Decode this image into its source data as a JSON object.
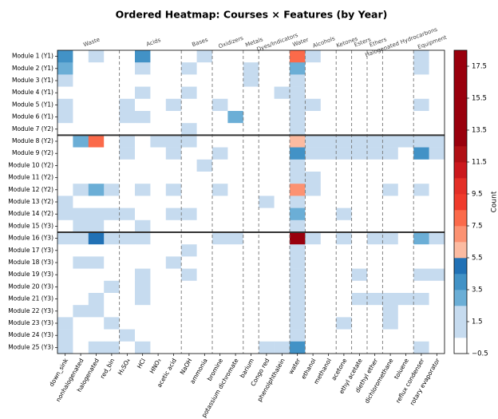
{
  "chart_data": {
    "type": "heatmap",
    "title": "Ordered Heatmap: Courses × Features (by Year)",
    "colorbar_label": "Count",
    "rows": [
      "Module 1 (Y1)",
      "Module 2 (Y1)",
      "Module 3 (Y1)",
      "Module 4 (Y1)",
      "Module 5 (Y1)",
      "Module 6 (Y1)",
      "Module 7 (Y2)",
      "Module 8 (Y2)",
      "Module 9 (Y2)",
      "Module 10 (Y2)",
      "Module 11 (Y2)",
      "Module 12 (Y2)",
      "Module 13 (Y2)",
      "Module 14 (Y2)",
      "Module 15 (Y3)",
      "Module 16 (Y3)",
      "Module 17 (Y3)",
      "Module 18 (Y3)",
      "Module 19 (Y3)",
      "Module 20 (Y3)",
      "Module 21 (Y3)",
      "Module 22 (Y3)",
      "Module 23 (Y3)",
      "Module 24 (Y3)",
      "Module 25 (Y3)"
    ],
    "columns": [
      "down_sink",
      "nonhalogenated",
      "halogenated",
      "red_bin",
      "H₂SO₄",
      "HCl",
      "HNO₃",
      "acetic acid",
      "NaOH",
      "ammonia",
      "bromine",
      "potassium dichromate",
      "barium",
      "Congo red",
      "phenolphthalein",
      "water",
      "ethanol",
      "methanol",
      "acetone",
      "ethyl acetate",
      "diethyl ether",
      "dichloromethane",
      "toluene",
      "reflux condenser",
      "rotary evaporator"
    ],
    "groups": [
      {
        "label": "Waste",
        "start": 0,
        "end": 3
      },
      {
        "label": "Acids",
        "start": 4,
        "end": 7
      },
      {
        "label": "Bases",
        "start": 8,
        "end": 9
      },
      {
        "label": "Oxidizers",
        "start": 10,
        "end": 11
      },
      {
        "label": "Metals",
        "start": 12,
        "end": 12
      },
      {
        "label": "Dyes/Indicators",
        "start": 13,
        "end": 14
      },
      {
        "label": "Water",
        "start": 15,
        "end": 15
      },
      {
        "label": "Alcohols",
        "start": 16,
        "end": 17
      },
      {
        "label": "Ketones",
        "start": 18,
        "end": 18
      },
      {
        "label": "Esters",
        "start": 19,
        "end": 19
      },
      {
        "label": "Ethers",
        "start": 20,
        "end": 20
      },
      {
        "label": "Halogenated Hydrocarbons",
        "start": 21,
        "end": 22
      },
      {
        "label": "Equipment",
        "start": 23,
        "end": 24
      }
    ],
    "row_breaks": [
      7,
      15
    ],
    "values": [
      [
        4,
        0,
        1,
        0,
        0,
        4,
        0,
        0,
        0,
        1,
        0,
        0,
        0,
        0,
        0,
        8,
        1,
        0,
        0,
        0,
        0,
        0,
        0,
        1,
        0
      ],
      [
        3,
        0,
        0,
        0,
        0,
        1,
        0,
        0,
        1,
        0,
        0,
        0,
        1,
        0,
        0,
        3,
        0,
        0,
        0,
        0,
        0,
        0,
        0,
        1,
        0
      ],
      [
        2,
        0,
        0,
        0,
        0,
        0,
        0,
        0,
        0,
        0,
        0,
        0,
        2,
        0,
        0,
        1,
        0,
        0,
        0,
        0,
        0,
        0,
        0,
        0,
        0
      ],
      [
        0,
        0,
        0,
        0,
        0,
        1,
        0,
        0,
        1,
        0,
        0,
        0,
        0,
        0,
        1,
        1,
        0,
        0,
        0,
        0,
        0,
        0,
        0,
        0,
        0
      ],
      [
        1,
        0,
        0,
        0,
        1,
        0,
        0,
        2,
        0,
        0,
        2,
        0,
        0,
        0,
        0,
        1,
        1,
        0,
        0,
        0,
        0,
        0,
        0,
        1,
        0
      ],
      [
        2,
        0,
        0,
        0,
        2,
        1,
        0,
        0,
        0,
        0,
        0,
        3,
        0,
        0,
        0,
        1,
        0,
        0,
        0,
        0,
        0,
        0,
        0,
        0,
        0
      ],
      [
        0,
        0,
        0,
        0,
        0,
        0,
        0,
        0,
        1,
        0,
        0,
        0,
        0,
        0,
        0,
        1,
        0,
        0,
        0,
        0,
        0,
        0,
        0,
        0,
        0
      ],
      [
        0,
        3,
        8,
        0,
        1,
        0,
        1,
        1,
        1,
        0,
        0,
        0,
        0,
        0,
        0,
        6,
        1,
        1,
        1,
        1,
        1,
        2,
        1,
        2,
        2
      ],
      [
        0,
        0,
        0,
        0,
        1,
        0,
        0,
        1,
        0,
        0,
        1,
        0,
        0,
        0,
        0,
        4,
        1,
        2,
        1,
        1,
        1,
        2,
        0,
        4,
        1
      ],
      [
        0,
        0,
        0,
        0,
        0,
        0,
        0,
        0,
        0,
        1,
        0,
        0,
        0,
        0,
        0,
        1,
        0,
        0,
        0,
        0,
        0,
        0,
        0,
        0,
        0
      ],
      [
        0,
        0,
        0,
        0,
        0,
        0,
        0,
        0,
        0,
        0,
        0,
        0,
        0,
        0,
        0,
        1,
        1,
        0,
        0,
        0,
        0,
        0,
        0,
        0,
        0
      ],
      [
        0,
        1,
        3,
        1,
        0,
        2,
        0,
        1,
        0,
        0,
        1,
        0,
        0,
        0,
        0,
        7,
        2,
        0,
        0,
        0,
        0,
        2,
        0,
        1,
        0
      ],
      [
        1,
        0,
        0,
        0,
        0,
        0,
        0,
        0,
        0,
        0,
        0,
        0,
        0,
        2,
        0,
        1,
        0,
        0,
        0,
        0,
        0,
        0,
        0,
        0,
        0
      ],
      [
        1,
        1,
        1,
        1,
        1,
        0,
        0,
        1,
        1,
        0,
        0,
        0,
        0,
        0,
        0,
        3,
        0,
        0,
        1,
        0,
        0,
        0,
        0,
        0,
        0
      ],
      [
        0,
        1,
        1,
        0,
        0,
        1,
        0,
        0,
        0,
        0,
        0,
        0,
        0,
        0,
        0,
        1,
        0,
        0,
        0,
        0,
        0,
        0,
        0,
        0,
        0
      ],
      [
        1,
        1,
        5,
        1,
        1,
        1,
        0,
        0,
        0,
        0,
        1,
        1,
        0,
        0,
        0,
        18,
        1,
        0,
        2,
        0,
        1,
        2,
        0,
        3,
        2
      ],
      [
        0,
        0,
        0,
        0,
        0,
        0,
        0,
        0,
        2,
        0,
        0,
        0,
        0,
        0,
        0,
        1,
        0,
        0,
        0,
        0,
        0,
        0,
        0,
        0,
        0
      ],
      [
        0,
        1,
        1,
        0,
        0,
        0,
        0,
        1,
        0,
        0,
        0,
        0,
        0,
        0,
        0,
        1,
        0,
        0,
        0,
        0,
        0,
        0,
        0,
        0,
        0
      ],
      [
        0,
        0,
        0,
        0,
        0,
        1,
        0,
        0,
        1,
        0,
        0,
        0,
        0,
        0,
        0,
        1,
        0,
        0,
        0,
        1,
        0,
        0,
        0,
        1,
        1
      ],
      [
        0,
        0,
        0,
        2,
        0,
        1,
        0,
        0,
        0,
        0,
        0,
        0,
        0,
        0,
        0,
        1,
        0,
        0,
        0,
        0,
        0,
        0,
        0,
        0,
        0
      ],
      [
        0,
        0,
        1,
        0,
        0,
        1,
        0,
        0,
        0,
        0,
        0,
        0,
        0,
        0,
        0,
        1,
        0,
        0,
        0,
        1,
        1,
        1,
        1,
        1,
        0
      ],
      [
        0,
        1,
        1,
        0,
        0,
        0,
        0,
        0,
        0,
        0,
        0,
        0,
        0,
        0,
        0,
        1,
        0,
        0,
        0,
        0,
        0,
        1,
        0,
        0,
        0
      ],
      [
        1,
        0,
        0,
        1,
        0,
        0,
        0,
        0,
        0,
        0,
        0,
        0,
        0,
        0,
        0,
        1,
        0,
        0,
        2,
        0,
        0,
        1,
        0,
        0,
        0
      ],
      [
        1,
        0,
        0,
        0,
        1,
        0,
        0,
        0,
        0,
        0,
        0,
        0,
        0,
        0,
        0,
        1,
        0,
        0,
        0,
        0,
        0,
        0,
        0,
        0,
        0
      ],
      [
        2,
        0,
        2,
        1,
        0,
        1,
        0,
        0,
        0,
        0,
        0,
        0,
        0,
        1,
        1,
        4,
        0,
        0,
        0,
        0,
        0,
        0,
        0,
        2,
        0
      ]
    ],
    "colors": [
      "#ffffff",
      "#c6dbef",
      "#c6dbef",
      "#6baed6",
      "#4292c6",
      "#2171b5",
      "#fcbba1",
      "#fc9272",
      "#fb6a4a",
      "#ef3b2c",
      "#e32f27",
      "#cb181d",
      "#b01015",
      "#99000d",
      "#99000d",
      "#99000d",
      "#99000d",
      "#99000d",
      "#99000d"
    ],
    "clim": [
      -0.5,
      18.5
    ],
    "cticks": [
      {
        "value": -0.5,
        "label": "−0.5"
      },
      1.5,
      3.5,
      5.5,
      7.5,
      9.5,
      11.5,
      13.5,
      15.5,
      17.5
    ]
  }
}
